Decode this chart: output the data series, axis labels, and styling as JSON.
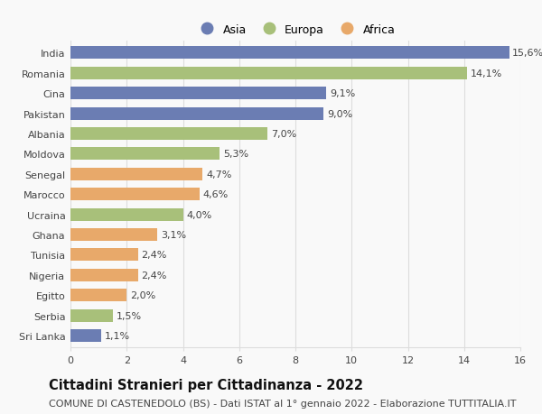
{
  "categories": [
    "India",
    "Romania",
    "Cina",
    "Pakistan",
    "Albania",
    "Moldova",
    "Senegal",
    "Marocco",
    "Ucraina",
    "Ghana",
    "Tunisia",
    "Nigeria",
    "Egitto",
    "Serbia",
    "Sri Lanka"
  ],
  "values": [
    15.6,
    14.1,
    9.1,
    9.0,
    7.0,
    5.3,
    4.7,
    4.6,
    4.0,
    3.1,
    2.4,
    2.4,
    2.0,
    1.5,
    1.1
  ],
  "labels": [
    "15,6%",
    "14,1%",
    "9,1%",
    "9,0%",
    "7,0%",
    "5,3%",
    "4,7%",
    "4,6%",
    "4,0%",
    "3,1%",
    "2,4%",
    "2,4%",
    "2,0%",
    "1,5%",
    "1,1%"
  ],
  "colors": [
    "#6b7db3",
    "#a8c07a",
    "#6b7db3",
    "#6b7db3",
    "#a8c07a",
    "#a8c07a",
    "#e8a96a",
    "#e8a96a",
    "#a8c07a",
    "#e8a96a",
    "#e8a96a",
    "#e8a96a",
    "#e8a96a",
    "#a8c07a",
    "#6b7db3"
  ],
  "legend_labels": [
    "Asia",
    "Europa",
    "Africa"
  ],
  "legend_colors": [
    "#6b7db3",
    "#a8c07a",
    "#e8a96a"
  ],
  "title": "Cittadini Stranieri per Cittadinanza - 2022",
  "subtitle": "COMUNE DI CASTENEDOLO (BS) - Dati ISTAT al 1° gennaio 2022 - Elaborazione TUTTITALIA.IT",
  "xlim": [
    0,
    16
  ],
  "xticks": [
    0,
    2,
    4,
    6,
    8,
    10,
    12,
    14,
    16
  ],
  "background_color": "#f9f9f9",
  "grid_color": "#dddddd",
  "bar_height": 0.62,
  "title_fontsize": 10.5,
  "subtitle_fontsize": 8,
  "label_fontsize": 8,
  "tick_fontsize": 8,
  "legend_fontsize": 9
}
